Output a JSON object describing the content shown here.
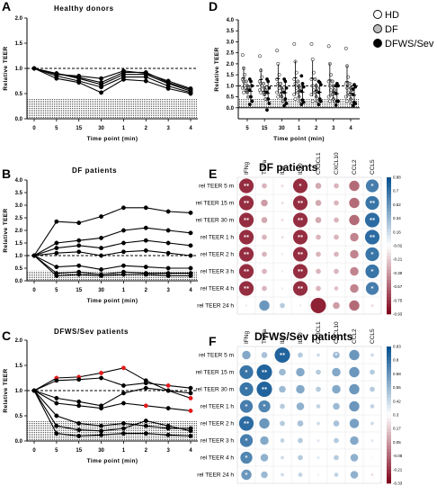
{
  "legend": {
    "hd": "HD",
    "df": "DF",
    "dfws": "DFWS/Sev",
    "colors": {
      "hd": "#ffffff",
      "df": "#bdbdbd",
      "dfws": "#000000"
    }
  },
  "chart_data": [
    {
      "panel": "A",
      "type": "line",
      "title": "Healthy donors",
      "xlabel": "Time point (min)",
      "ylabel": "Relative TEER",
      "categories": [
        "0",
        "5",
        "15",
        "30",
        "1",
        "2",
        "3",
        "4"
      ],
      "ylim": [
        0,
        2.0
      ],
      "yticks": [
        "0.0",
        "0.5",
        "1.0",
        "1.5",
        "2.0"
      ],
      "reference_line": 1.0,
      "shaded_band": [
        0,
        0.4
      ],
      "series": [
        {
          "values": [
            1.0,
            0.9,
            0.8,
            0.68,
            0.88,
            0.88,
            0.7,
            0.55
          ]
        },
        {
          "values": [
            1.0,
            0.85,
            0.75,
            0.63,
            0.83,
            0.83,
            0.65,
            0.52
          ]
        },
        {
          "values": [
            1.0,
            0.9,
            0.82,
            0.72,
            0.92,
            0.92,
            0.72,
            0.58
          ]
        },
        {
          "values": [
            1.0,
            0.8,
            0.72,
            0.52,
            0.78,
            0.75,
            0.6,
            0.5
          ]
        },
        {
          "values": [
            1.0,
            0.88,
            0.85,
            0.8,
            0.95,
            0.9,
            0.75,
            0.6
          ]
        }
      ]
    },
    {
      "panel": "B",
      "type": "line",
      "title": "DF patients",
      "xlabel": "Time point (min)",
      "ylabel": "Relative TEER",
      "categories": [
        "0",
        "5",
        "15",
        "30",
        "1",
        "2",
        "3",
        "4"
      ],
      "ylim": [
        0,
        4.0
      ],
      "yticks": [
        "0.0",
        "0.5",
        "1.0",
        "1.5",
        "2.0",
        "2.5",
        "3.0",
        "3.5",
        "4.0"
      ],
      "reference_line": 1.0,
      "shaded_band": [
        0,
        0.4
      ],
      "series": [
        {
          "values": [
            1.0,
            2.35,
            2.3,
            2.55,
            2.9,
            2.9,
            2.75,
            2.7
          ]
        },
        {
          "values": [
            1.0,
            1.5,
            1.6,
            1.7,
            2.0,
            2.1,
            2.0,
            1.9
          ]
        },
        {
          "values": [
            1.0,
            1.3,
            1.4,
            1.3,
            1.5,
            1.6,
            1.5,
            1.4
          ]
        },
        {
          "values": [
            1.0,
            1.1,
            1.15,
            1.0,
            1.15,
            1.2,
            1.1,
            1.0
          ]
        },
        {
          "values": [
            1.0,
            0.55,
            0.6,
            0.45,
            0.6,
            0.55,
            0.5,
            0.5
          ]
        },
        {
          "values": [
            1.0,
            0.3,
            0.35,
            0.25,
            0.35,
            0.3,
            0.3,
            0.3
          ]
        },
        {
          "values": [
            1.0,
            0.2,
            0.25,
            0.2,
            0.25,
            0.25,
            0.2,
            0.2
          ]
        }
      ]
    },
    {
      "panel": "C",
      "type": "line",
      "title": "DFWS/Sev patients",
      "xlabel": "Time point (min)",
      "ylabel": "Relative TEER",
      "categories": [
        "0",
        "5",
        "15",
        "30",
        "1",
        "2",
        "3",
        "4"
      ],
      "ylim": [
        0,
        2.0
      ],
      "yticks": [
        "0.0",
        "0.5",
        "1.0",
        "1.5",
        "2.0"
      ],
      "reference_line": 1.0,
      "shaded_band": [
        0,
        0.4
      ],
      "highlight_color": "#e31a1c",
      "series": [
        {
          "values": [
            1.0,
            1.25,
            1.27,
            1.35,
            1.45,
            1.2,
            1.0,
            0.85
          ],
          "highlight": [
            false,
            true,
            true,
            true,
            true,
            false,
            false,
            true
          ]
        },
        {
          "values": [
            1.0,
            1.2,
            1.22,
            1.25,
            1.1,
            1.15,
            1.1,
            1.05
          ],
          "highlight": [
            false,
            false,
            false,
            false,
            false,
            false,
            true,
            false
          ]
        },
        {
          "values": [
            1.0,
            0.85,
            0.78,
            0.7,
            0.95,
            1.05,
            1.0,
            0.95
          ],
          "highlight": [
            false,
            false,
            false,
            false,
            false,
            false,
            false,
            false
          ]
        },
        {
          "values": [
            1.0,
            0.75,
            0.7,
            0.65,
            0.75,
            0.7,
            0.65,
            0.6
          ],
          "highlight": [
            false,
            false,
            false,
            false,
            false,
            true,
            false,
            true
          ]
        },
        {
          "values": [
            1.0,
            0.5,
            0.35,
            0.3,
            0.35,
            0.3,
            0.25,
            0.25
          ],
          "highlight": [
            false,
            false,
            false,
            false,
            false,
            false,
            false,
            false
          ]
        },
        {
          "values": [
            1.0,
            0.3,
            0.22,
            0.2,
            0.25,
            0.4,
            0.3,
            0.2
          ],
          "highlight": [
            false,
            false,
            false,
            false,
            false,
            false,
            false,
            false
          ]
        },
        {
          "values": [
            1.0,
            0.15,
            0.1,
            0.12,
            0.15,
            0.15,
            0.12,
            0.1
          ],
          "highlight": [
            false,
            false,
            false,
            false,
            false,
            false,
            false,
            false
          ]
        }
      ]
    },
    {
      "panel": "D",
      "type": "scatter",
      "xlabel": "Time point (min)",
      "ylabel": "Relative TEER",
      "categories": [
        "5",
        "15",
        "30",
        "1",
        "2",
        "3",
        "4"
      ],
      "ylim": [
        -0.5,
        4.0
      ],
      "yticks": [
        "0.0",
        "0.5",
        "1.0",
        "1.5",
        "2.0",
        "2.5",
        "3.0",
        "3.5",
        "4.0"
      ],
      "reference_line": 1.0,
      "shaded_band": [
        0,
        0.4
      ],
      "groups": [
        {
          "name": "HD",
          "values": [
            [
              2.4,
              1.8,
              1.5,
              1.3,
              1.2,
              1.0,
              0.9,
              0.7
            ],
            [
              2.35,
              1.7,
              1.4,
              1.2,
              1.1,
              1.0,
              0.8,
              0.7
            ],
            [
              2.6,
              2.0,
              1.5,
              1.3,
              1.1,
              0.9,
              0.7,
              0.5
            ],
            [
              2.9,
              2.1,
              1.6,
              1.3,
              1.1,
              0.9,
              0.6,
              0.4
            ],
            [
              2.9,
              2.2,
              1.6,
              1.3,
              1.0,
              0.8,
              0.6,
              0.3
            ],
            [
              2.8,
              2.0,
              1.5,
              1.2,
              1.0,
              0.8,
              0.5,
              0.3
            ],
            [
              2.7,
              1.9,
              1.4,
              1.1,
              0.9,
              0.7,
              0.5,
              0.3
            ]
          ]
        },
        {
          "name": "DF",
          "values": [
            [
              1.2,
              1.0,
              0.9,
              0.8,
              0.7,
              0.5
            ],
            [
              1.1,
              0.9,
              0.8,
              0.7,
              0.6,
              0.4
            ],
            [
              1.1,
              0.9,
              0.8,
              0.6,
              0.5,
              0.3
            ],
            [
              1.2,
              1.0,
              0.9,
              0.7,
              0.5,
              0.3
            ],
            [
              1.3,
              1.0,
              0.9,
              0.7,
              0.5,
              0.3
            ],
            [
              1.2,
              1.0,
              0.8,
              0.6,
              0.4,
              0.3
            ],
            [
              1.1,
              0.9,
              0.8,
              0.6,
              0.4,
              0.2
            ]
          ]
        },
        {
          "name": "DFWS/Sev",
          "values": [
            [
              1.3,
              1.2,
              1.0,
              0.8,
              0.5,
              0.3,
              0.15
            ],
            [
              1.3,
              1.2,
              0.9,
              0.7,
              0.4,
              0.2,
              -0.1
            ],
            [
              1.3,
              1.2,
              0.9,
              0.7,
              0.4,
              0.2,
              0.1
            ],
            [
              1.45,
              1.1,
              0.95,
              0.75,
              0.35,
              0.25,
              0.15
            ],
            [
              1.2,
              1.15,
              1.05,
              0.7,
              0.4,
              0.3,
              0.15
            ],
            [
              1.0,
              1.1,
              1.0,
              0.65,
              0.3,
              0.3,
              0.12
            ],
            [
              0.85,
              1.05,
              0.95,
              0.6,
              0.25,
              0.2,
              0.1
            ]
          ]
        }
      ]
    },
    {
      "panel": "E",
      "type": "heatmap",
      "title": "DF patients",
      "columns": [
        "IFNg",
        "TNFa",
        "IL8",
        "IL10",
        "CX3CL1",
        "CXCL10",
        "CCL2",
        "CCL5"
      ],
      "rows": [
        "rel TEER 5 m",
        "rel TEER 15 m",
        "rel TEER 30 m",
        "rel TEER 1 h",
        "rel TEER 2 h",
        "rel TEER 3 h",
        "rel TEER 4 h",
        "rel TEER 24 h"
      ],
      "colorbar_ticks": [
        "0.88",
        "0.7",
        "0.52",
        "0.34",
        "0.16",
        "-0.02",
        "-0.21",
        "-0.39",
        "-0.57",
        "-0.75",
        "-0.93"
      ],
      "values": [
        [
          -0.85,
          -0.3,
          -0.15,
          -0.85,
          -0.35,
          -0.3,
          -0.6,
          0.75
        ],
        [
          -0.85,
          -0.4,
          -0.15,
          -0.85,
          -0.35,
          -0.3,
          -0.6,
          0.8
        ],
        [
          -0.85,
          -0.35,
          -0.15,
          -0.85,
          -0.35,
          -0.3,
          -0.6,
          0.85
        ],
        [
          -0.85,
          -0.3,
          -0.15,
          -0.85,
          -0.3,
          -0.3,
          -0.5,
          0.85
        ],
        [
          -0.85,
          -0.3,
          -0.1,
          -0.85,
          -0.3,
          -0.3,
          -0.5,
          0.8
        ],
        [
          -0.85,
          -0.3,
          -0.1,
          -0.85,
          -0.3,
          -0.3,
          -0.5,
          0.8
        ],
        [
          -0.85,
          -0.3,
          -0.1,
          -0.85,
          -0.3,
          -0.25,
          -0.5,
          0.75
        ],
        [
          -0.1,
          0.6,
          0.3,
          -0.1,
          -0.9,
          -0.4,
          -0.6,
          -0.15
        ]
      ],
      "stars": [
        [
          "**",
          "",
          "",
          "*",
          "",
          "",
          "",
          "*"
        ],
        [
          "**",
          "",
          "",
          "**",
          "",
          "",
          "",
          "**"
        ],
        [
          "**",
          "",
          "",
          "**",
          "",
          "",
          "",
          "**"
        ],
        [
          "**",
          "",
          "",
          "**",
          "",
          "",
          "",
          "**"
        ],
        [
          "**",
          "",
          "",
          "**",
          "",
          "",
          "",
          "*"
        ],
        [
          "**",
          "",
          "",
          "**",
          "",
          "",
          "",
          "*"
        ],
        [
          "**",
          "",
          "",
          "**",
          "",
          "",
          "",
          "*"
        ],
        [
          "",
          "",
          "",
          "",
          "",
          "",
          "",
          ""
        ]
      ]
    },
    {
      "panel": "F",
      "type": "heatmap",
      "title": "DFWS/Sev patients",
      "columns": [
        "IFNg",
        "TNFa",
        "IL8",
        "IL10",
        "CX3CL1",
        "CXCL10",
        "CCL2",
        "CCL5"
      ],
      "rows": [
        "rel TEER 5 m",
        "rel TEER 15 m",
        "rel TEER 30 m",
        "rel TEER 1 h",
        "rel TEER 2 h",
        "rel TEER 3 h",
        "rel TEER 4 h",
        "rel TEER 24 h"
      ],
      "colorbar_ticks": [
        "0.93",
        "0.8",
        "0.68",
        "0.55",
        "0.42",
        "0.3",
        "0.17",
        "0.05",
        "-0.08",
        "-0.21",
        "-0.33"
      ],
      "values": [
        [
          0.5,
          0.35,
          0.9,
          0.3,
          0.2,
          0.4,
          0.6,
          0.2
        ],
        [
          0.8,
          0.9,
          0.4,
          0.5,
          0.3,
          0.5,
          0.6,
          0.3
        ],
        [
          0.8,
          0.9,
          0.4,
          0.5,
          0.3,
          0.5,
          0.6,
          0.3
        ],
        [
          0.75,
          0.7,
          0.3,
          0.45,
          0.25,
          0.4,
          0.6,
          0.25
        ],
        [
          0.85,
          0.6,
          0.3,
          0.35,
          0.2,
          0.35,
          0.55,
          0.2
        ],
        [
          0.75,
          0.5,
          0.25,
          0.3,
          0.15,
          0.3,
          0.5,
          0.15
        ],
        [
          0.7,
          0.45,
          0.2,
          0.3,
          0.15,
          0.3,
          0.45,
          -0.05
        ],
        [
          0.6,
          0.4,
          0.2,
          0.25,
          0.1,
          0.25,
          0.45,
          -0.15
        ]
      ],
      "stars": [
        [
          "",
          "",
          "**",
          "",
          "",
          "*",
          "",
          ""
        ],
        [
          "*",
          "**",
          "",
          "",
          "",
          "",
          "",
          ""
        ],
        [
          "*",
          "**",
          "",
          "",
          "",
          "",
          "",
          ""
        ],
        [
          "*",
          "*",
          "",
          "",
          "",
          "",
          "",
          ""
        ],
        [
          "**",
          "",
          "",
          "",
          "",
          "",
          "",
          ""
        ],
        [
          "*",
          "",
          "",
          "",
          "",
          "",
          "",
          ""
        ],
        [
          "*",
          "",
          "",
          "",
          "",
          "",
          "",
          ""
        ],
        [
          "*",
          "",
          "",
          "",
          "",
          "",
          "",
          ""
        ]
      ]
    }
  ]
}
